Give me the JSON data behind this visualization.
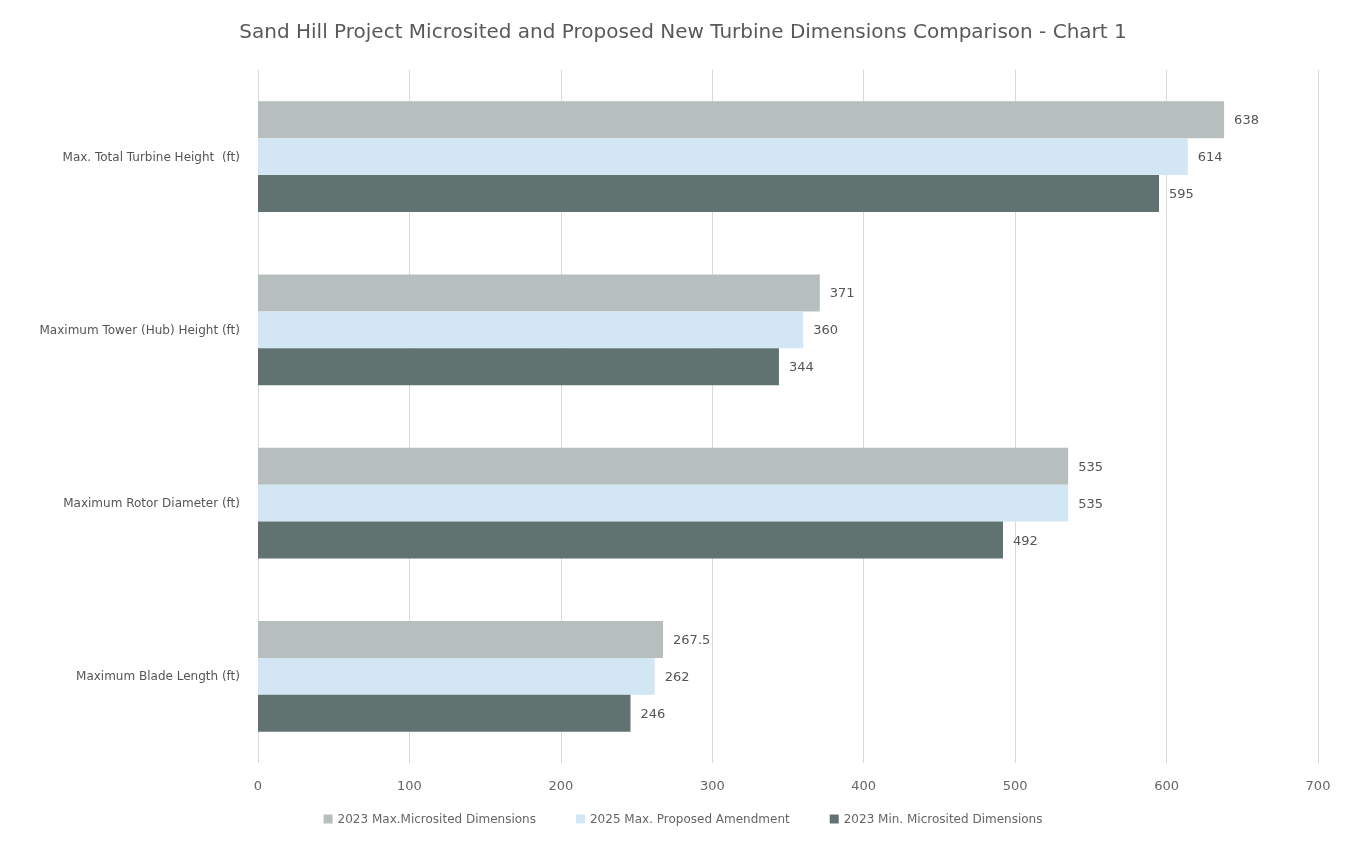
{
  "chart_data": {
    "type": "bar",
    "orientation": "horizontal",
    "title": "Sand Hill Project Microsited and Proposed New Turbine Dimensions Comparison - Chart 1",
    "categories": [
      "Max. Total Turbine Height  (ft)",
      "Maximum Tower (Hub) Height (ft)",
      "Maximum Rotor Diameter (ft)",
      "Maximum Blade Length (ft)"
    ],
    "series": [
      {
        "name": "2023 Max.Microsited Dimensions",
        "color": "#b6bebe",
        "values": [
          638,
          371,
          535,
          267.5
        ]
      },
      {
        "name": "2025 Max. Proposed Amendment",
        "color": "#d3e6f4",
        "values": [
          614,
          360,
          535,
          262
        ]
      },
      {
        "name": "2023 Min. Microsited Dimensions",
        "color": "#617371",
        "values": [
          595,
          344,
          492,
          246
        ]
      }
    ],
    "xlim": [
      0,
      700
    ],
    "xticks": [
      0,
      100,
      200,
      300,
      400,
      500,
      600,
      700
    ],
    "grid": "x",
    "legend": "bottom",
    "data_labels": true
  }
}
